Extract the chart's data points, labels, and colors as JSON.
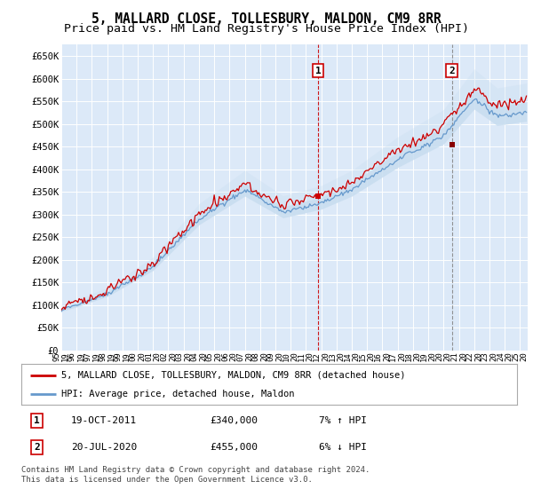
{
  "title": "5, MALLARD CLOSE, TOLLESBURY, MALDON, CM9 8RR",
  "subtitle": "Price paid vs. HM Land Registry's House Price Index (HPI)",
  "ytick_labels": [
    "£0",
    "£50K",
    "£100K",
    "£150K",
    "£200K",
    "£250K",
    "£300K",
    "£350K",
    "£400K",
    "£450K",
    "£500K",
    "£550K",
    "£600K",
    "£650K"
  ],
  "ytick_values": [
    0,
    50000,
    100000,
    150000,
    200000,
    250000,
    300000,
    350000,
    400000,
    450000,
    500000,
    550000,
    600000,
    650000
  ],
  "ylim": [
    0,
    675000
  ],
  "xlim_start": 1995.0,
  "xlim_end": 2025.5,
  "background_color": "#dce9f8",
  "grid_color": "#ffffff",
  "sale1_date": 2011.8,
  "sale1_price": 340000,
  "sale1_label": "1",
  "sale1_display": "19-OCT-2011",
  "sale1_amount": "£340,000",
  "sale1_hpi": "7% ↑ HPI",
  "sale1_vline_color": "#cc0000",
  "sale1_vline_style": "--",
  "sale2_date": 2020.54,
  "sale2_price": 455000,
  "sale2_label": "2",
  "sale2_display": "20-JUL-2020",
  "sale2_amount": "£455,000",
  "sale2_hpi": "6% ↓ HPI",
  "sale2_vline_color": "#888888",
  "sale2_vline_style": "--",
  "red_line_color": "#cc0000",
  "blue_line_color": "#6699cc",
  "blue_fill_color": "#c8ddf0",
  "legend_label1": "5, MALLARD CLOSE, TOLLESBURY, MALDON, CM9 8RR (detached house)",
  "legend_label2": "HPI: Average price, detached house, Maldon",
  "footer": "Contains HM Land Registry data © Crown copyright and database right 2024.\nThis data is licensed under the Open Government Licence v3.0.",
  "title_fontsize": 10.5,
  "subtitle_fontsize": 9.5
}
